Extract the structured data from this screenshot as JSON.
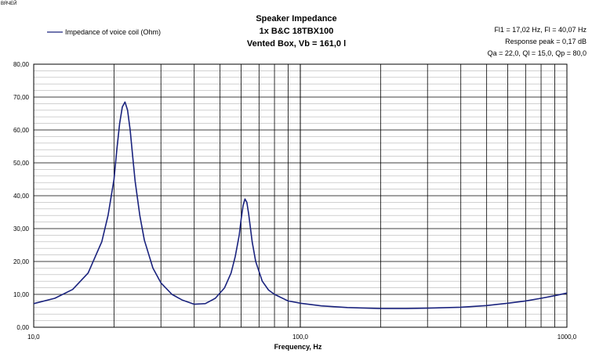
{
  "corner_label": "ВЯЧЕЙ",
  "chart_data": {
    "type": "line",
    "title": "Speaker Impedance",
    "subtitle_lines": [
      "1x B&C 18TBX100",
      "Vented Box, Vb = 161,0 l"
    ],
    "info_lines": [
      "Fl1 = 17,02 Hz, Fl = 40,07 Hz",
      "Response peak = 0,17 dB",
      "Qa = 22,0, Ql = 15,0, Qp = 80,0"
    ],
    "xlabel": "Frequency, Hz",
    "ylabel": "",
    "x_scale": "log",
    "xlim": [
      10,
      1000
    ],
    "ylim": [
      0,
      80
    ],
    "x_ticks": [
      10,
      100,
      1000
    ],
    "x_tick_labels": [
      "10,0",
      "100,0",
      "1000,0"
    ],
    "y_ticks": [
      0,
      10,
      20,
      30,
      40,
      50,
      60,
      70,
      80
    ],
    "y_tick_labels": [
      "0,00",
      "10,00",
      "20,00",
      "30,00",
      "40,00",
      "50,00",
      "60,00",
      "70,00",
      "80,00"
    ],
    "grid": true,
    "legend_position": "top-left",
    "series": [
      {
        "name": "Impedance of voice coil (Ohm)",
        "color": "#1a237e",
        "x": [
          10,
          12,
          14,
          16,
          18,
          19,
          20,
          20.5,
          21,
          21.5,
          22,
          22.5,
          23,
          23.5,
          24,
          25,
          26,
          28,
          30,
          33,
          36,
          40,
          44,
          48,
          52,
          55,
          57,
          59,
          60,
          61,
          62,
          63,
          64,
          66,
          68,
          72,
          76,
          80,
          90,
          100,
          120,
          150,
          200,
          250,
          300,
          400,
          500,
          600,
          700,
          800,
          900,
          1000
        ],
        "values": [
          7.2,
          8.8,
          11.5,
          16.5,
          26.0,
          34.0,
          45.0,
          54.0,
          62.0,
          67.0,
          68.5,
          66.0,
          60.0,
          52.0,
          44.5,
          34.0,
          26.5,
          18.0,
          13.5,
          10.0,
          8.3,
          7.0,
          7.2,
          8.8,
          12.0,
          16.5,
          21.5,
          28.0,
          33.0,
          37.0,
          39.0,
          38.0,
          34.5,
          26.0,
          20.0,
          14.0,
          11.3,
          10.0,
          8.0,
          7.3,
          6.5,
          6.0,
          5.7,
          5.7,
          5.8,
          6.1,
          6.6,
          7.3,
          8.0,
          8.8,
          9.6,
          10.4
        ]
      }
    ]
  }
}
